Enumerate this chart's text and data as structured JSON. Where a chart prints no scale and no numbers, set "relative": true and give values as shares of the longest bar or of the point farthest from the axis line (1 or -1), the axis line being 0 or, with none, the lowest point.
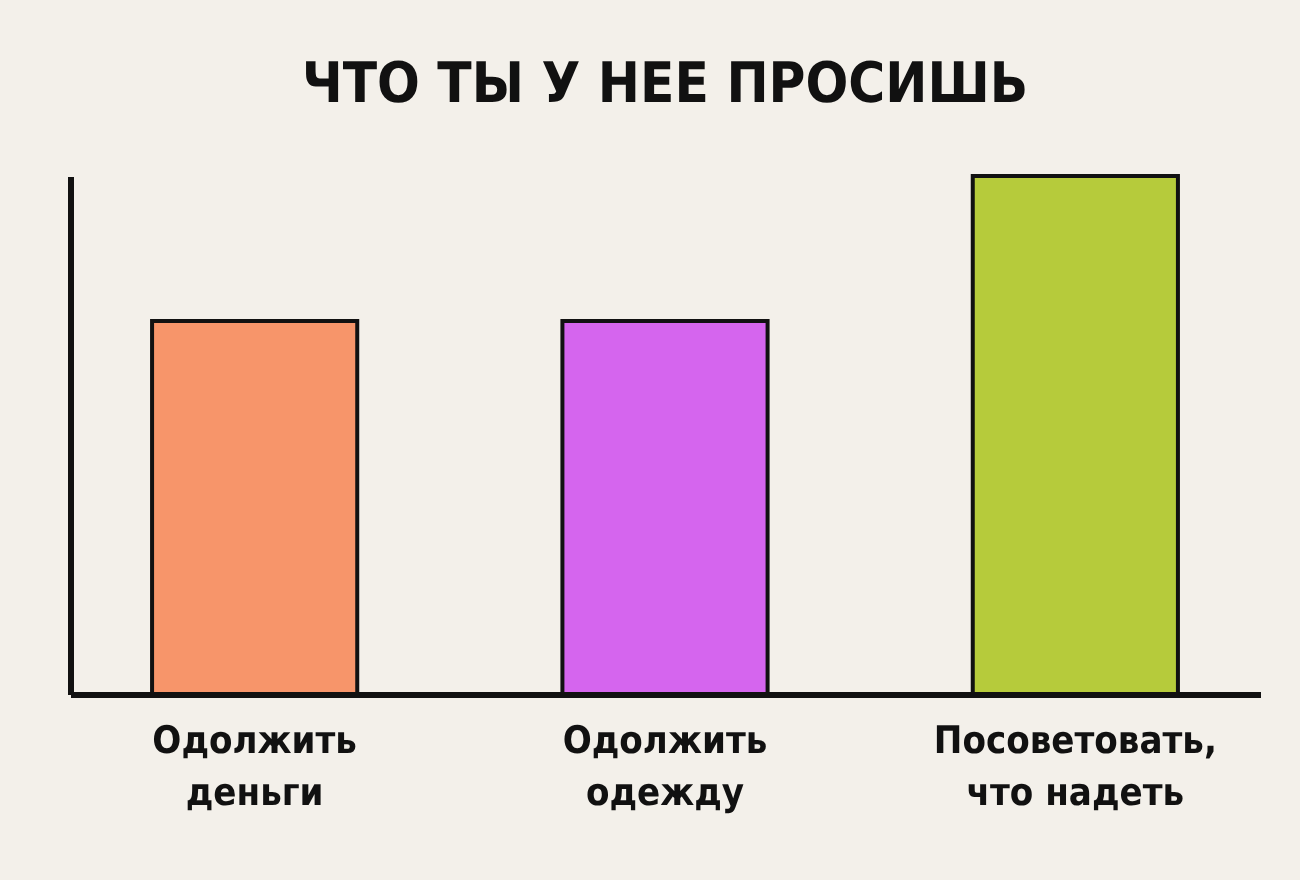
{
  "chart_data": {
    "type": "bar",
    "title": "ЧТО ТЫ У НЕЕ ПРОСИШЬ",
    "relative": true,
    "categories": [
      "Одолжить деньги",
      "Одолжить одежду",
      "Посоветовать, что надеть"
    ],
    "values": [
      0.72,
      0.72,
      1
    ],
    "colors": [
      "#f7956a",
      "#d565ee",
      "#b6cb3b"
    ]
  }
}
